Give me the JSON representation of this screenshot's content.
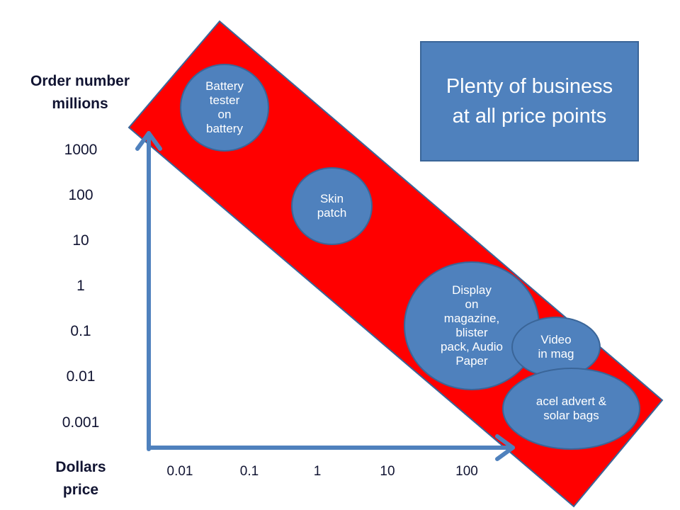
{
  "title_box": "Plenty of business\nat all price points",
  "y_axis": {
    "title_line1": "Order number",
    "title_line2": "millions",
    "ticks": [
      "1000",
      "100",
      "10",
      "1",
      "0.1",
      "0.01",
      "0.001"
    ]
  },
  "x_axis": {
    "title_line1": "Dollars",
    "title_line2": "price",
    "ticks": [
      "0.01",
      "0.1",
      "1",
      "10",
      "100"
    ]
  },
  "bubbles": [
    {
      "text": "Battery\ntester\non\nbattery"
    },
    {
      "text": "Skin\npatch"
    },
    {
      "text": "Display\non\nmagazine,\nblister\npack,  Audio\nPaper"
    },
    {
      "text": "Video\nin mag"
    },
    {
      "text": "acel advert &\nsolar bags"
    }
  ],
  "colors": {
    "band": "#ff0000",
    "bubble": "#4f81bd",
    "border": "#3a6598",
    "axis": "#4f81bd"
  }
}
